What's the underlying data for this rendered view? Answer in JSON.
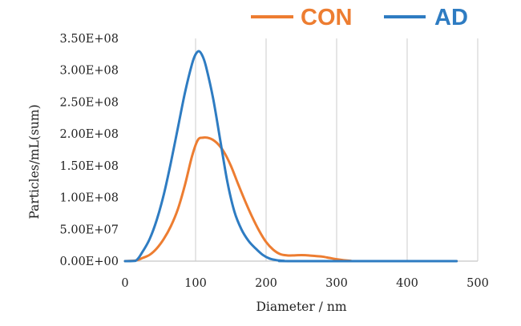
{
  "chart_data": {
    "type": "line",
    "title": "",
    "xlabel": "Diameter / nm",
    "ylabel": "Particles/mL(sum)",
    "xlim": [
      0,
      500
    ],
    "ylim": [
      0,
      350000000
    ],
    "x_ticks": [
      0,
      100,
      200,
      300,
      400,
      500
    ],
    "x_tick_labels": [
      "0",
      "100",
      "200",
      "300",
      "400",
      "500"
    ],
    "y_ticks": [
      0,
      50000000,
      100000000,
      150000000,
      200000000,
      250000000,
      300000000,
      350000000
    ],
    "y_tick_labels": [
      "0.00E+00",
      "5.00E+07",
      "1.00E+08",
      "1.50E+08",
      "2.00E+08",
      "2.50E+08",
      "3.00E+08",
      "3.50E+08"
    ],
    "grid": "vertical",
    "legend_position": "top-right",
    "series": [
      {
        "name": "CON",
        "color": "#ED7D31",
        "points": [
          [
            0,
            0
          ],
          [
            15,
            1000000
          ],
          [
            25,
            5000000
          ],
          [
            35,
            10000000
          ],
          [
            45,
            20000000
          ],
          [
            55,
            35000000
          ],
          [
            65,
            55000000
          ],
          [
            75,
            82000000
          ],
          [
            85,
            120000000
          ],
          [
            95,
            165000000
          ],
          [
            103,
            190000000
          ],
          [
            110,
            194000000
          ],
          [
            120,
            193000000
          ],
          [
            130,
            186000000
          ],
          [
            140,
            172000000
          ],
          [
            150,
            150000000
          ],
          [
            160,
            122000000
          ],
          [
            170,
            95000000
          ],
          [
            180,
            70000000
          ],
          [
            190,
            48000000
          ],
          [
            200,
            30000000
          ],
          [
            210,
            18000000
          ],
          [
            220,
            11000000
          ],
          [
            230,
            9000000
          ],
          [
            240,
            9000000
          ],
          [
            250,
            9500000
          ],
          [
            260,
            9000000
          ],
          [
            270,
            8000000
          ],
          [
            280,
            7000000
          ],
          [
            290,
            5000000
          ],
          [
            300,
            3000000
          ],
          [
            310,
            1500000
          ],
          [
            320,
            500000
          ],
          [
            330,
            0
          ],
          [
            470,
            0
          ]
        ]
      },
      {
        "name": "AD",
        "color": "#2E7CC2",
        "points": [
          [
            0,
            0
          ],
          [
            15,
            500000
          ],
          [
            25,
            15000000
          ],
          [
            35,
            35000000
          ],
          [
            45,
            65000000
          ],
          [
            55,
            105000000
          ],
          [
            65,
            155000000
          ],
          [
            75,
            210000000
          ],
          [
            85,
            265000000
          ],
          [
            95,
            310000000
          ],
          [
            100,
            325000000
          ],
          [
            105,
            330000000
          ],
          [
            110,
            322000000
          ],
          [
            115,
            305000000
          ],
          [
            125,
            255000000
          ],
          [
            135,
            190000000
          ],
          [
            145,
            125000000
          ],
          [
            155,
            78000000
          ],
          [
            165,
            50000000
          ],
          [
            175,
            32000000
          ],
          [
            185,
            20000000
          ],
          [
            195,
            10000000
          ],
          [
            205,
            4000000
          ],
          [
            215,
            1500000
          ],
          [
            225,
            500000
          ],
          [
            240,
            0
          ],
          [
            470,
            0
          ]
        ]
      }
    ]
  }
}
